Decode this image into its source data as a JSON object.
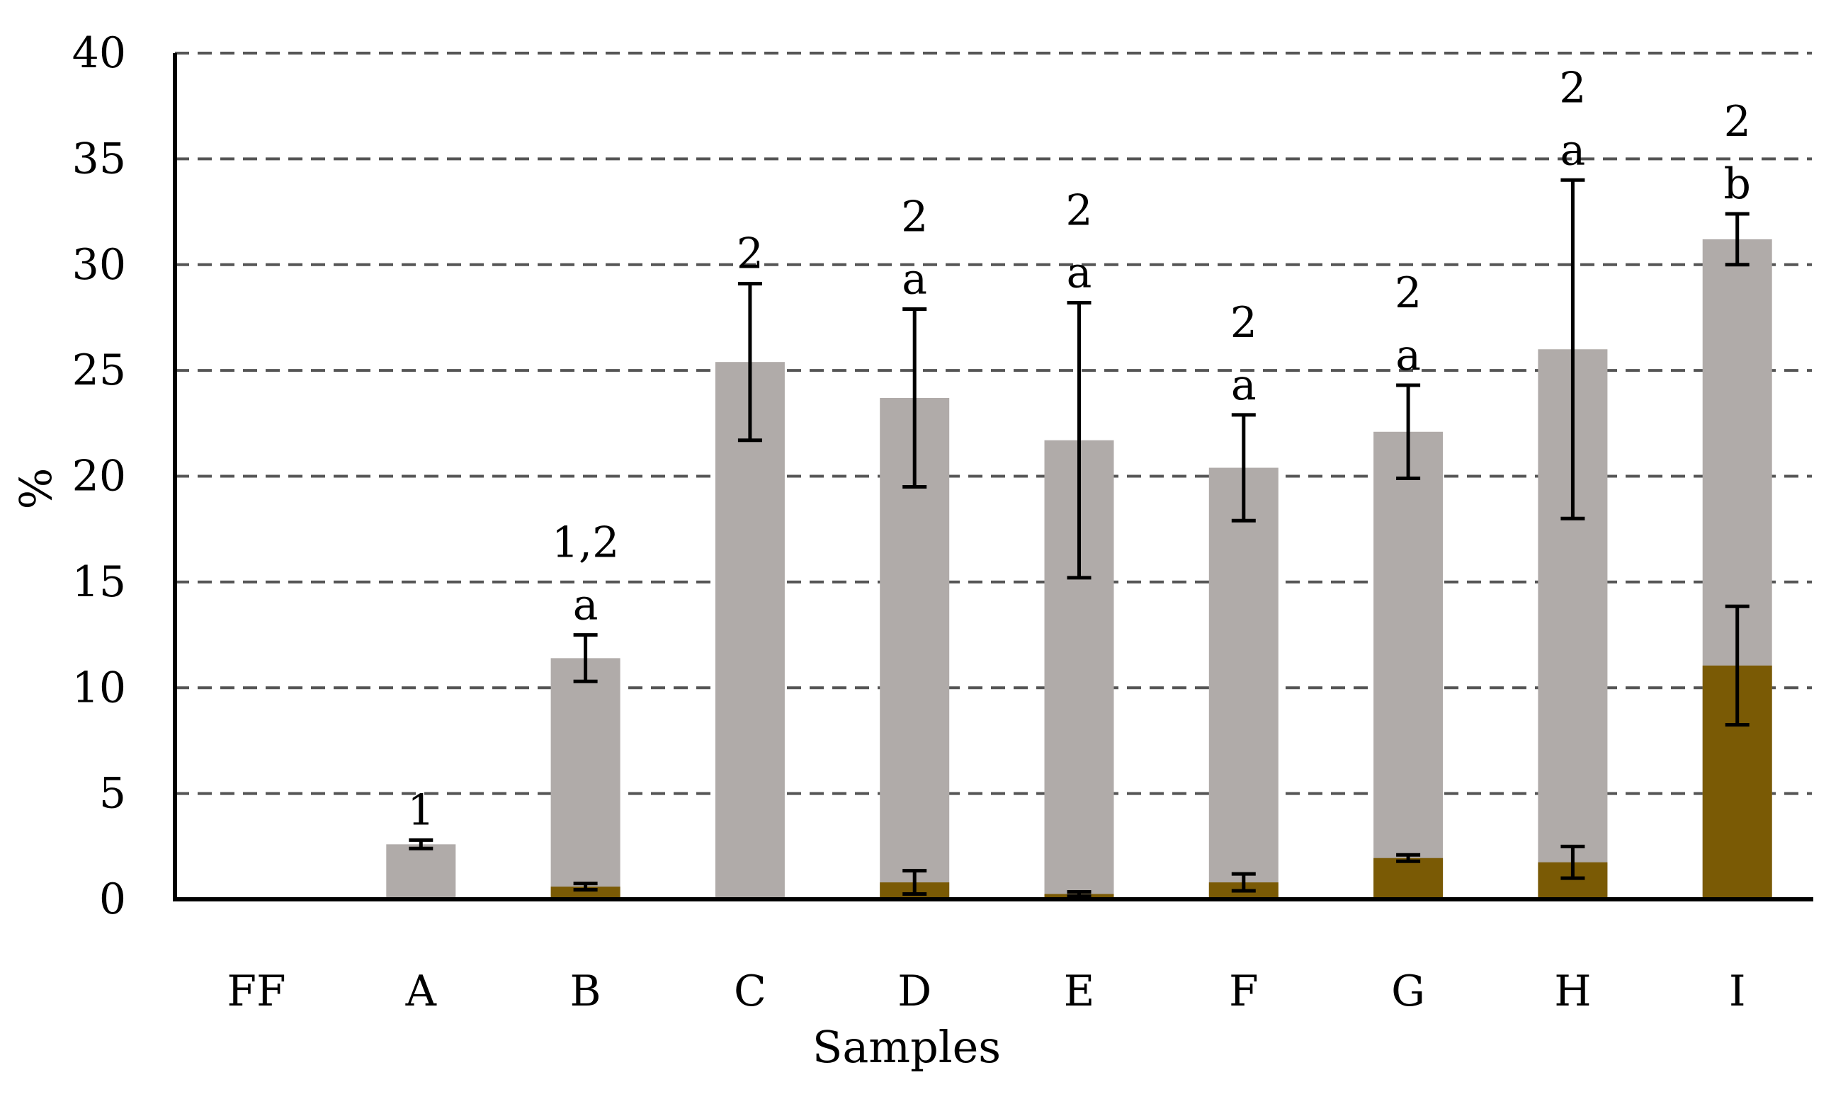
{
  "chart_data": {
    "type": "bar",
    "stacked": false,
    "overlapping_bars": true,
    "xlabel": "Samples",
    "ylabel": "%",
    "ylim": [
      0,
      40
    ],
    "yticks": [
      0,
      5,
      10,
      15,
      20,
      25,
      30,
      35,
      40
    ],
    "grid": "horizontal dashed",
    "categories": [
      "FF",
      "A",
      "B",
      "C",
      "D",
      "E",
      "F",
      "G",
      "H",
      "I"
    ],
    "series": [
      {
        "color": "#b0aba9",
        "values": [
          0,
          2.6,
          11.4,
          25.4,
          23.7,
          21.7,
          20.4,
          22.1,
          26.0,
          31.2
        ],
        "errors": [
          0,
          0.2,
          1.1,
          3.7,
          4.2,
          6.5,
          2.5,
          2.2,
          8.0,
          1.2
        ]
      },
      {
        "color": "#7a5a05",
        "values": [
          0,
          0,
          0.6,
          0,
          0.8,
          0.25,
          0.8,
          1.95,
          1.75,
          11.05
        ],
        "errors": [
          0,
          0,
          0.15,
          0,
          0.55,
          0.1,
          0.4,
          0.15,
          0.75,
          2.8
        ]
      }
    ],
    "annotations": [
      {
        "category": "A",
        "lines": [
          "1"
        ]
      },
      {
        "category": "B",
        "lines": [
          "1,2",
          "a"
        ]
      },
      {
        "category": "C",
        "lines": [
          "2"
        ]
      },
      {
        "category": "D",
        "lines": [
          "2",
          "a"
        ]
      },
      {
        "category": "E",
        "lines": [
          "2",
          "a"
        ]
      },
      {
        "category": "F",
        "lines": [
          "2",
          "a"
        ]
      },
      {
        "category": "G",
        "lines": [
          "2",
          "a"
        ]
      },
      {
        "category": "H",
        "lines": [
          "2",
          "a"
        ]
      },
      {
        "category": "I",
        "lines": [
          "2",
          "b"
        ]
      }
    ]
  }
}
